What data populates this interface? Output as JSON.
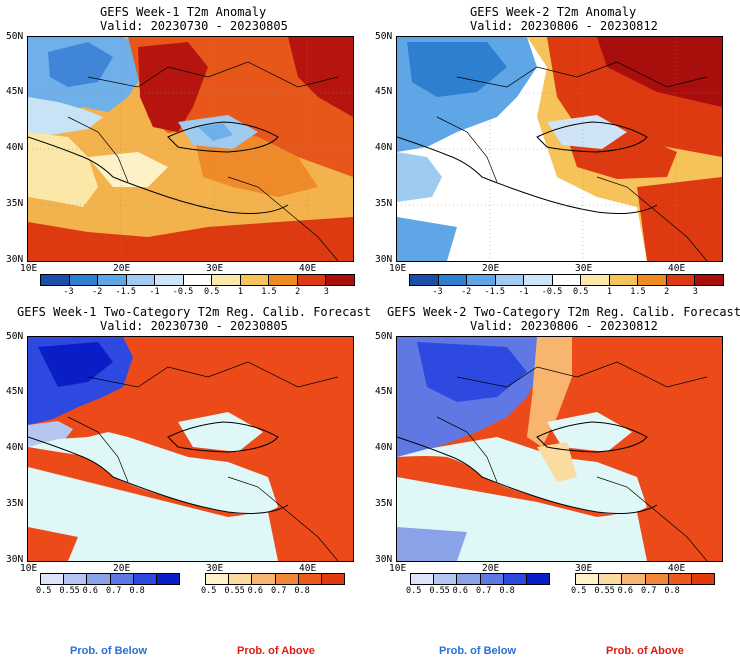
{
  "panels": {
    "p1": {
      "title": "GEFS Week-1 T2m Anomaly",
      "valid": "Valid: 20230730 - 20230805"
    },
    "p2": {
      "title": "GEFS Week-2 T2m Anomaly",
      "valid": "Valid: 20230806 - 20230812"
    },
    "p3": {
      "title": "GEFS Week-1 Two-Category T2m Reg. Calib. Forecast",
      "valid": "Valid: 20230730 - 20230805"
    },
    "p4": {
      "title": "GEFS Week-2 Two-Category T2m Reg. Calib. Forecast",
      "valid": "Valid: 20230806 - 20230812"
    }
  },
  "axes": {
    "lat_labels": [
      "50N",
      "45N",
      "40N",
      "35N",
      "30N"
    ],
    "lon_labels": [
      "10E",
      "20E",
      "30E",
      "40E"
    ]
  },
  "anomaly_colorbar": {
    "labels": [
      "-3",
      "-2",
      "-1.5",
      "-1",
      "-0.5",
      "0.5",
      "1",
      "1.5",
      "2",
      "3"
    ],
    "colors": [
      "#1a4fa8",
      "#2f7fd0",
      "#5fa6e6",
      "#9fcbf0",
      "#cfe5f7",
      "#ffffff",
      "#fbe8a8",
      "#f6c35a",
      "#ee8a1e",
      "#dd3a12",
      "#a80f0c"
    ]
  },
  "prob_colorbar": {
    "below_labels": [
      "0.5",
      "0.55",
      "0.6",
      "0.7",
      "0.8"
    ],
    "above_labels": [
      "0.5",
      "0.55",
      "0.6",
      "0.7",
      "0.8"
    ],
    "below_colors": [
      "#dde6f8",
      "#b5c6f0",
      "#8aa2e8",
      "#5f78e4",
      "#2d49e0",
      "#0a1ec8"
    ],
    "above_colors": [
      "#fff2c8",
      "#fbdca0",
      "#f8b570",
      "#f2873c",
      "#ec5b1c",
      "#e23a0c"
    ],
    "below_caption": "Prob. of Below",
    "above_caption": "Prob. of Above",
    "below_caption_color": "#2a6fd6",
    "above_caption_color": "#e21a10"
  },
  "colors": {
    "sea_light": "#e0f7f7",
    "land_white": "#ffffff"
  }
}
